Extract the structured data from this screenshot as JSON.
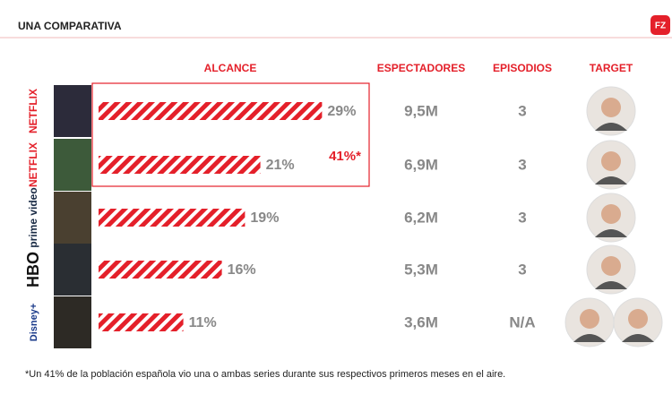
{
  "header": {
    "title": "UNA COMPARATIVA",
    "badge": "FZ"
  },
  "columns": [
    "ALCANCE",
    "ESPECTADORES",
    "EPISODIOS",
    "TARGET"
  ],
  "rows": [
    {
      "platform": "NETFLIX",
      "reach": 29,
      "reach_label": "29%",
      "viewers": "9,5M",
      "episodes": 3
    },
    {
      "platform": "NETFLIX",
      "reach": 21,
      "reach_label": "21%",
      "viewers": "6,9M",
      "episodes": 3
    },
    {
      "platform": "prime video",
      "reach": 19,
      "reach_label": "19%",
      "viewers": "6,2M",
      "episodes": 3
    },
    {
      "platform": "HBO",
      "reach": 16,
      "reach_label": "16%",
      "viewers": "5,3M",
      "episodes": 3
    },
    {
      "platform": "Disney+",
      "reach": 11,
      "reach_label": "11%",
      "viewers": "3,6M",
      "episodes": "N/A"
    }
  ],
  "combined": "41%*",
  "footnote": "*Un 41% de la población española vio una o ambas series durante sus respectivos primeros meses en el aire."
}
